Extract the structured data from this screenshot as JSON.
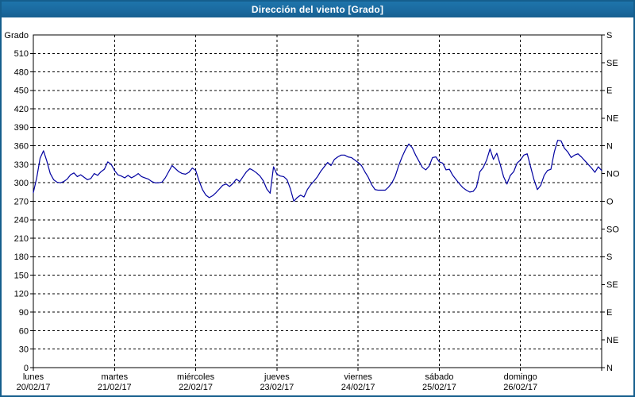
{
  "title": "Dirección del viento [Grado]",
  "colors": {
    "titlebar_bg": "#1a699e",
    "frame_border": "#155e8d",
    "line_color": "#0000a0",
    "grid_color": "#000000",
    "plot_bg": "#ffffff",
    "title_text": "#ffffff",
    "axis_text": "#000000"
  },
  "chart_data": {
    "type": "line",
    "title": "Dirección del viento [Grado]",
    "ylabel_left": "Grado",
    "ylim": [
      0,
      540
    ],
    "grid": "dashed",
    "legend_position": "none",
    "y_left_ticks": [
      0,
      30,
      60,
      90,
      120,
      150,
      180,
      210,
      240,
      270,
      300,
      330,
      360,
      390,
      420,
      450,
      480,
      510
    ],
    "y_right_ticks": [
      {
        "deg": 0,
        "label": "N"
      },
      {
        "deg": 45,
        "label": "NE"
      },
      {
        "deg": 90,
        "label": "E"
      },
      {
        "deg": 135,
        "label": "SE"
      },
      {
        "deg": 180,
        "label": "S"
      },
      {
        "deg": 225,
        "label": "SO"
      },
      {
        "deg": 270,
        "label": "O"
      },
      {
        "deg": 315,
        "label": "NO"
      },
      {
        "deg": 360,
        "label": "N"
      },
      {
        "deg": 405,
        "label": "NE"
      },
      {
        "deg": 450,
        "label": "E"
      },
      {
        "deg": 495,
        "label": "SE"
      },
      {
        "deg": 540,
        "label": "S"
      }
    ],
    "x_days": [
      {
        "name": "lunes",
        "date": "20/02/17"
      },
      {
        "name": "martes",
        "date": "21/02/17"
      },
      {
        "name": "miércoles",
        "date": "22/02/17"
      },
      {
        "name": "jueves",
        "date": "23/02/17"
      },
      {
        "name": "viernes",
        "date": "24/02/17"
      },
      {
        "name": "sábado",
        "date": "25/02/17"
      },
      {
        "name": "domingo",
        "date": "26/02/17"
      }
    ],
    "series": [
      {
        "name": "Dirección del viento [Grado]",
        "color": "#0000a0",
        "points_per_day": 24,
        "values": [
          284,
          308,
          340,
          352,
          335,
          315,
          305,
          301,
          300,
          302,
          306,
          313,
          316,
          310,
          313,
          309,
          305,
          307,
          315,
          312,
          318,
          322,
          334,
          330,
          320,
          313,
          311,
          308,
          312,
          308,
          311,
          315,
          310,
          308,
          306,
          302,
          300,
          300,
          301,
          308,
          318,
          328,
          323,
          318,
          315,
          314,
          317,
          324,
          320,
          303,
          289,
          280,
          276,
          279,
          284,
          290,
          296,
          298,
          294,
          299,
          306,
          302,
          310,
          318,
          323,
          320,
          316,
          311,
          303,
          290,
          283,
          326,
          314,
          311,
          310,
          305,
          290,
          270,
          276,
          280,
          277,
          289,
          297,
          303,
          310,
          319,
          326,
          333,
          328,
          338,
          342,
          345,
          345,
          342,
          341,
          337,
          333,
          328,
          318,
          309,
          297,
          289,
          288,
          288,
          288,
          293,
          300,
          311,
          328,
          342,
          354,
          363,
          357,
          345,
          335,
          325,
          321,
          327,
          341,
          342,
          334,
          332,
          321,
          322,
          312,
          305,
          298,
          292,
          288,
          285,
          286,
          293,
          318,
          325,
          337,
          355,
          338,
          348,
          330,
          310,
          298,
          312,
          318,
          332,
          337,
          345,
          347,
          326,
          305,
          289,
          296,
          312,
          320,
          322,
          350,
          369,
          368,
          356,
          350,
          341,
          345,
          347,
          342,
          336,
          330,
          324,
          317,
          326,
          320
        ]
      }
    ]
  }
}
